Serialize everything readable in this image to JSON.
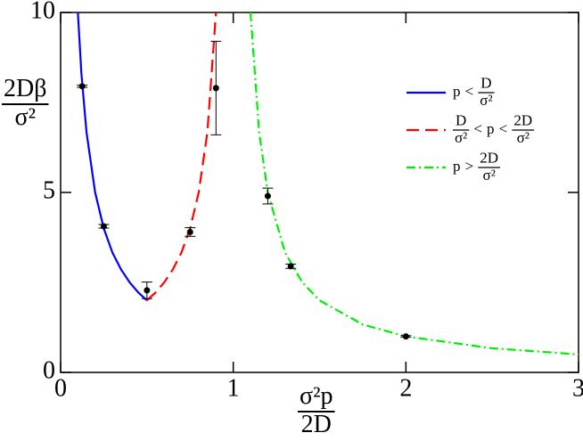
{
  "chart_data": {
    "type": "line",
    "xlabel": "σ²p/2D",
    "ylabel": "2Dβ/σ²",
    "xlim": [
      0,
      3
    ],
    "ylim": [
      0,
      10
    ],
    "xticks": [
      0,
      1,
      2,
      3
    ],
    "yticks": [
      0,
      5,
      10
    ],
    "legend": "upper right",
    "series": [
      {
        "name": "p < D/σ²",
        "color": "#0000ff",
        "linestyle": "solid",
        "x": [
          0.1,
          0.12,
          0.15,
          0.2,
          0.25,
          0.3,
          0.35,
          0.4,
          0.45,
          0.5
        ],
        "values": [
          10,
          8.33,
          6.67,
          5,
          4,
          3.33,
          2.86,
          2.5,
          2.22,
          2
        ]
      },
      {
        "name": "D/σ² < p < 2D/σ²",
        "color": "#ff0000",
        "linestyle": "dashed",
        "x": [
          0.5,
          0.55,
          0.6,
          0.65,
          0.7,
          0.75,
          0.8,
          0.85,
          0.9
        ],
        "values": [
          2,
          2.22,
          2.5,
          2.86,
          3.33,
          4,
          5,
          6.67,
          10
        ]
      },
      {
        "name": "p > 2D/σ²",
        "color": "#00ee00",
        "linestyle": "dashdot",
        "x": [
          1.1,
          1.15,
          1.2,
          1.3,
          1.4,
          1.5,
          1.75,
          2,
          2.5,
          3
        ],
        "values": [
          10,
          6.67,
          5,
          3.33,
          2.5,
          2,
          1.33,
          1,
          0.67,
          0.5
        ]
      }
    ],
    "points": {
      "color": "#000000",
      "x": [
        0.125,
        0.25,
        0.5,
        0.75,
        0.9,
        1.2,
        1.333,
        2
      ],
      "values": [
        7.95,
        4.06,
        2.28,
        3.9,
        7.9,
        4.9,
        2.95,
        1.0
      ],
      "errors": [
        0.03,
        0.05,
        0.23,
        0.12,
        1.3,
        0.22,
        0.06,
        0.02
      ]
    }
  }
}
